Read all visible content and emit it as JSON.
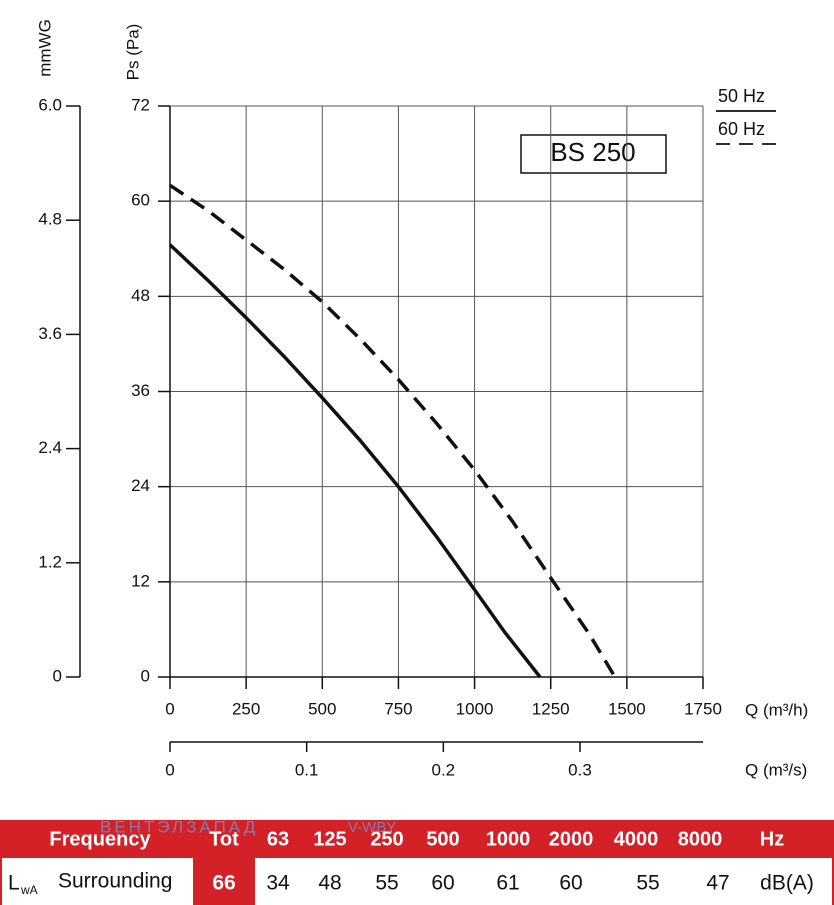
{
  "chart_data": {
    "type": "line",
    "annotation": "BS 250",
    "x_label": "Q (m³/h)",
    "y_label": "Ps (Pa)",
    "xlim": [
      0,
      1750
    ],
    "xticks": [
      0,
      250,
      500,
      750,
      1000,
      1250,
      1500,
      1750
    ],
    "ylim": [
      0,
      72
    ],
    "yticks": [
      0,
      12,
      24,
      36,
      48,
      60,
      72
    ],
    "grid": true,
    "legend": "top-right",
    "y2_label": "mmWG",
    "y2lim": [
      0,
      6
    ],
    "y2ticks": [
      0,
      1.2,
      2.4,
      3.6,
      4.8,
      {
        "value": 6,
        "label": "6.0"
      }
    ],
    "x2_label": "Q (m³/s)",
    "x2lim": [
      0,
      0.39
    ],
    "x2ticks": [
      0,
      0.1,
      0.2,
      0.3
    ],
    "series": [
      {
        "name": "50 Hz",
        "color": "#111111",
        "style": "solid",
        "x": [
          0,
          125,
          250,
          375,
          500,
          625,
          750,
          875,
          1000,
          1100,
          1215
        ],
        "values": [
          54.5,
          50,
          45.3,
          40.4,
          35.2,
          29.8,
          24,
          17.7,
          11,
          5.6,
          0
        ]
      },
      {
        "name": "60 Hz",
        "color": "#111111",
        "style": "dashed",
        "x": [
          0,
          125,
          250,
          375,
          500,
          625,
          750,
          875,
          1000,
          1125,
          1250,
          1375,
          1461
        ],
        "values": [
          62,
          58.8,
          55.1,
          51.4,
          47.3,
          42.6,
          37.5,
          32,
          26.1,
          19.6,
          12.5,
          5.5,
          0
        ]
      }
    ]
  },
  "table": {
    "header": [
      "Frequency",
      "Tot",
      "63",
      "125",
      "250",
      "500",
      "1000",
      "2000",
      "4000",
      "8000",
      "Hz"
    ],
    "row_label": {
      "symbol": "L",
      "subscript": "wA",
      "text": "Surrounding"
    },
    "row": [
      "66",
      "34",
      "48",
      "55",
      "60",
      "61",
      "60",
      "55",
      "47",
      "dB(A)"
    ],
    "watermark": [
      "ВЕНТЭЛЗАПАД",
      "V-WBY"
    ]
  }
}
